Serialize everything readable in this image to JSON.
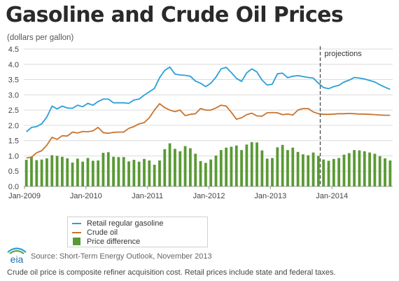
{
  "header": {
    "title": "Gasoline and Crude Oil Prices",
    "subtitle": "(dollars per gallon)"
  },
  "legend": {
    "gasoline": "Retail regular gasoline",
    "crude": "Crude oil",
    "difference": "Price difference"
  },
  "source": "Source: Short-Term Energy Outlook, November 2013",
  "footnote": "Crude oil price is composite refiner acquisition cost. Retail prices include state and federal taxes.",
  "logo_text": "eia",
  "colors": {
    "gasoline": "#2a9fd8",
    "crude": "#c8742e",
    "difference": "#5a9a35",
    "projection_line": "#555555"
  },
  "chart_data": {
    "type": "bar",
    "ylim": [
      0,
      4.5
    ],
    "yticks": [
      "0.0",
      "0.5",
      "1.0",
      "1.5",
      "2.0",
      "2.5",
      "3.0",
      "3.5",
      "4.0",
      "4.5"
    ],
    "xticks": [
      "Jan-2009",
      "Jan-2010",
      "Jan-2011",
      "Jan-2012",
      "Jan-2013",
      "Jan-2014"
    ],
    "start_month": "Jan-2009",
    "projection_start": "Nov-2013",
    "projection_label": "projections",
    "grid": true,
    "series": [
      {
        "name": "Retail regular gasoline",
        "type": "line",
        "values": [
          1.79,
          1.93,
          1.96,
          2.05,
          2.27,
          2.63,
          2.54,
          2.63,
          2.57,
          2.56,
          2.66,
          2.61,
          2.72,
          2.66,
          2.78,
          2.86,
          2.86,
          2.74,
          2.74,
          2.74,
          2.72,
          2.83,
          2.86,
          2.99,
          3.1,
          3.21,
          3.56,
          3.8,
          3.91,
          3.68,
          3.65,
          3.64,
          3.61,
          3.45,
          3.38,
          3.27,
          3.38,
          3.58,
          3.85,
          3.9,
          3.73,
          3.54,
          3.44,
          3.72,
          3.85,
          3.75,
          3.48,
          3.32,
          3.35,
          3.69,
          3.71,
          3.56,
          3.61,
          3.63,
          3.6,
          3.57,
          3.55,
          3.38,
          3.24,
          3.2,
          3.27,
          3.31,
          3.42,
          3.48,
          3.57,
          3.55,
          3.52,
          3.47,
          3.42,
          3.33,
          3.25,
          3.18
        ]
      },
      {
        "name": "Crude oil",
        "type": "line",
        "values": [
          0.93,
          0.96,
          1.1,
          1.17,
          1.35,
          1.61,
          1.54,
          1.66,
          1.65,
          1.78,
          1.75,
          1.8,
          1.79,
          1.82,
          1.93,
          1.76,
          1.74,
          1.77,
          1.78,
          1.78,
          1.9,
          1.96,
          2.05,
          2.09,
          2.25,
          2.5,
          2.71,
          2.58,
          2.5,
          2.45,
          2.5,
          2.32,
          2.36,
          2.38,
          2.55,
          2.5,
          2.5,
          2.57,
          2.66,
          2.63,
          2.43,
          2.2,
          2.25,
          2.35,
          2.4,
          2.31,
          2.3,
          2.41,
          2.42,
          2.41,
          2.35,
          2.37,
          2.34,
          2.5,
          2.55,
          2.55,
          2.44,
          2.38,
          2.36,
          2.36,
          2.37,
          2.38,
          2.38,
          2.39,
          2.38,
          2.37,
          2.37,
          2.36,
          2.35,
          2.34,
          2.33,
          2.33
        ]
      },
      {
        "name": "Price difference",
        "type": "bar",
        "values": [
          0.87,
          0.97,
          0.86,
          0.88,
          0.92,
          1.02,
          1.0,
          0.97,
          0.92,
          0.78,
          0.91,
          0.81,
          0.93,
          0.84,
          0.85,
          1.1,
          1.12,
          0.97,
          0.96,
          0.96,
          0.82,
          0.87,
          0.81,
          0.9,
          0.85,
          0.71,
          0.85,
          1.22,
          1.41,
          1.23,
          1.15,
          1.32,
          1.25,
          1.07,
          0.83,
          0.77,
          0.88,
          1.01,
          1.19,
          1.27,
          1.3,
          1.34,
          1.19,
          1.37,
          1.45,
          1.44,
          1.18,
          0.91,
          0.93,
          1.28,
          1.36,
          1.19,
          1.27,
          1.13,
          1.05,
          1.02,
          1.11,
          1.0,
          0.88,
          0.84,
          0.9,
          0.93,
          1.04,
          1.09,
          1.19,
          1.18,
          1.15,
          1.11,
          1.07,
          0.99,
          0.92,
          0.85
        ]
      }
    ]
  }
}
